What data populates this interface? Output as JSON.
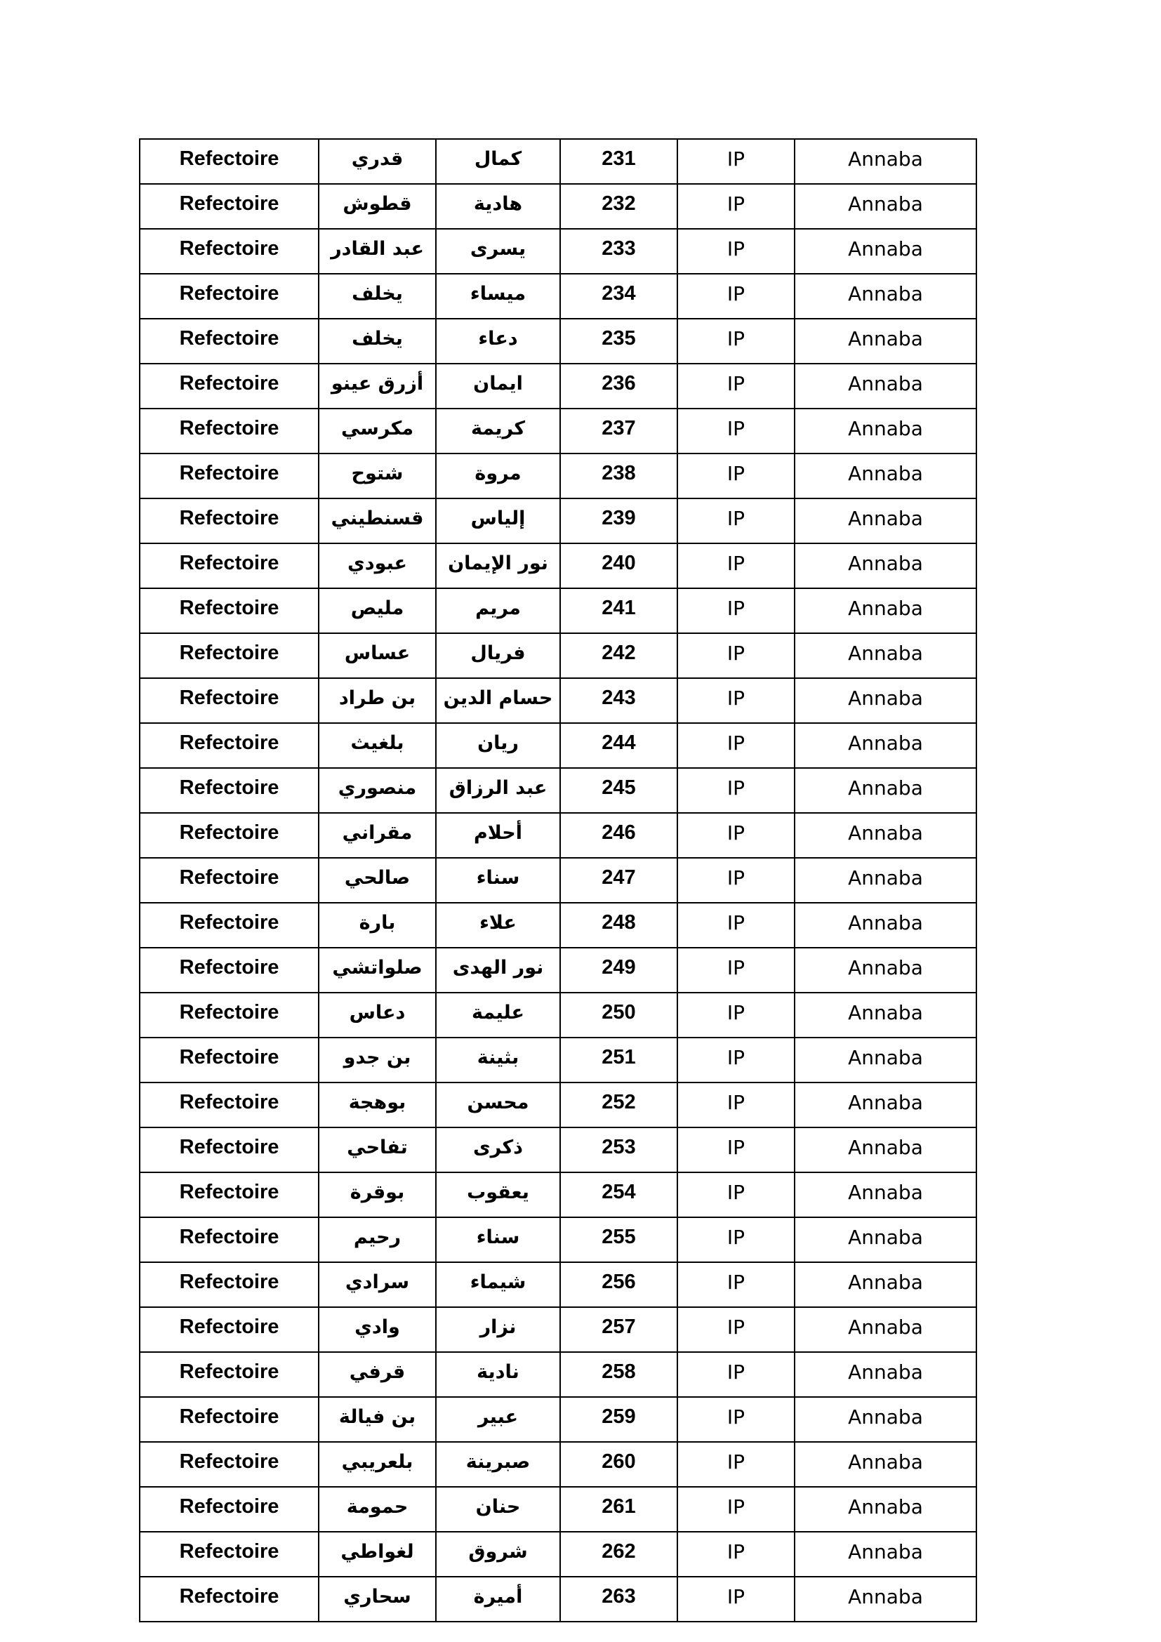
{
  "table": {
    "rows": [
      [
        "Refectoire",
        "قدري",
        "كمال",
        231,
        "IP",
        "Annaba"
      ],
      [
        "Refectoire",
        "قطوش",
        "هادية",
        232,
        "IP",
        "Annaba"
      ],
      [
        "Refectoire",
        "عبد القادر",
        "يسرى",
        233,
        "IP",
        "Annaba"
      ],
      [
        "Refectoire",
        "يخلف",
        "ميساء",
        234,
        "IP",
        "Annaba"
      ],
      [
        "Refectoire",
        "يخلف",
        "دعاء",
        235,
        "IP",
        "Annaba"
      ],
      [
        "Refectoire",
        "أزرق عينو",
        "ايمان",
        236,
        "IP",
        "Annaba"
      ],
      [
        "Refectoire",
        "مكرسي",
        "كريمة",
        237,
        "IP",
        "Annaba"
      ],
      [
        "Refectoire",
        "شتوح",
        "مروة",
        238,
        "IP",
        "Annaba"
      ],
      [
        "Refectoire",
        "قسنطيني",
        "إلياس",
        239,
        "IP",
        "Annaba"
      ],
      [
        "Refectoire",
        "عبودي",
        "نور الإيمان",
        240,
        "IP",
        "Annaba"
      ],
      [
        "Refectoire",
        "مليص",
        "مريم",
        241,
        "IP",
        "Annaba"
      ],
      [
        "Refectoire",
        "عساس",
        "فريال",
        242,
        "IP",
        "Annaba"
      ],
      [
        "Refectoire",
        "بن طراد",
        "حسام الدين",
        243,
        "IP",
        "Annaba"
      ],
      [
        "Refectoire",
        "بلغيث",
        "ريان",
        244,
        "IP",
        "Annaba"
      ],
      [
        "Refectoire",
        "منصوري",
        "عبد الرزاق",
        245,
        "IP",
        "Annaba"
      ],
      [
        "Refectoire",
        "مقراني",
        "أحلام",
        246,
        "IP",
        "Annaba"
      ],
      [
        "Refectoire",
        "صالحي",
        "سناء",
        247,
        "IP",
        "Annaba"
      ],
      [
        "Refectoire",
        "بارة",
        "علاء",
        248,
        "IP",
        "Annaba"
      ],
      [
        "Refectoire",
        "صلواتشي",
        "نور الهدى",
        249,
        "IP",
        "Annaba"
      ],
      [
        "Refectoire",
        "دعاس",
        "عليمة",
        250,
        "IP",
        "Annaba"
      ],
      [
        "Refectoire",
        "بن جدو",
        "بثينة",
        251,
        "IP",
        "Annaba"
      ],
      [
        "Refectoire",
        "بوهجة",
        "محسن",
        252,
        "IP",
        "Annaba"
      ],
      [
        "Refectoire",
        "تفاحي",
        "ذكرى",
        253,
        "IP",
        "Annaba"
      ],
      [
        "Refectoire",
        "بوقرة",
        "يعقوب",
        254,
        "IP",
        "Annaba"
      ],
      [
        "Refectoire",
        "رحيم",
        "سناء",
        255,
        "IP",
        "Annaba"
      ],
      [
        "Refectoire",
        "سرادي",
        "شيماء",
        256,
        "IP",
        "Annaba"
      ],
      [
        "Refectoire",
        "وادي",
        "نزار",
        257,
        "IP",
        "Annaba"
      ],
      [
        "Refectoire",
        "قرفي",
        "نادية",
        258,
        "IP",
        "Annaba"
      ],
      [
        "Refectoire",
        "بن فيالة",
        "عبير",
        259,
        "IP",
        "Annaba"
      ],
      [
        "Refectoire",
        "بلعريبي",
        "صبرينة",
        260,
        "IP",
        "Annaba"
      ],
      [
        "Refectoire",
        "حمومة",
        "حنان",
        261,
        "IP",
        "Annaba"
      ],
      [
        "Refectoire",
        "لغواطي",
        "شروق",
        262,
        "IP",
        "Annaba"
      ],
      [
        "Refectoire",
        "سحاري",
        "أميرة",
        263,
        "IP",
        "Annaba"
      ]
    ]
  }
}
